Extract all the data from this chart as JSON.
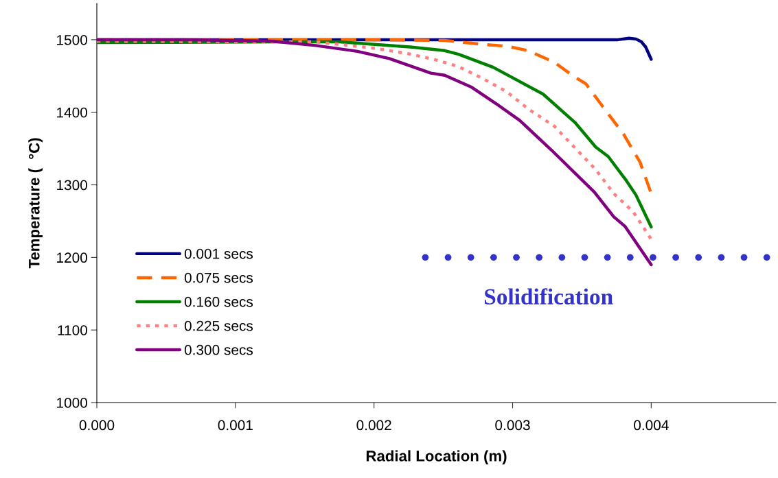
{
  "chart_data": {
    "type": "line",
    "xlabel": "Radial Location (m)",
    "ylabel": "Temperature (  °C)",
    "xlim": [
      0,
      0.0049
    ],
    "xticks": [
      {
        "value": 0,
        "label": "0.000"
      },
      {
        "value": 0.001,
        "label": "0.001"
      },
      {
        "value": 0.002,
        "label": "0.002"
      },
      {
        "value": 0.003,
        "label": "0.003"
      },
      {
        "value": 0.004,
        "label": "0.004"
      }
    ],
    "ylim": [
      1000,
      1550
    ],
    "yticks": [
      1000,
      1100,
      1200,
      1300,
      1400,
      1500
    ],
    "grid": false,
    "legend": "lower left",
    "series": [
      {
        "name": "0.001 secs",
        "color": "#000080",
        "line_style": "solid",
        "x": [
          0,
          0.002,
          0.00376,
          0.00384,
          0.00389,
          0.00393,
          0.00396,
          0.004
        ],
        "values": [
          1500,
          1500,
          1500,
          1502,
          1501,
          1497,
          1490,
          1473
        ]
      },
      {
        "name": "0.075 secs",
        "color": "#ff6600",
        "line_style": "dashed",
        "x": [
          0,
          0.00206,
          0.00251,
          0.00276,
          0.00296,
          0.00311,
          0.0033,
          0.00343,
          0.00353,
          0.00365,
          0.0038,
          0.00392,
          0.004
        ],
        "values": [
          1500,
          1500,
          1499,
          1494,
          1491,
          1485,
          1469,
          1451,
          1439,
          1408,
          1370,
          1331,
          1288
        ]
      },
      {
        "name": "0.160 secs",
        "color": "#008000",
        "line_style": "solid",
        "x": [
          0,
          0.00132,
          0.00175,
          0.00226,
          0.00251,
          0.00261,
          0.00286,
          0.00322,
          0.00345,
          0.0036,
          0.00369,
          0.00382,
          0.00389,
          0.004
        ],
        "values": [
          1496,
          1497,
          1497,
          1490,
          1485,
          1480,
          1462,
          1425,
          1386,
          1352,
          1339,
          1306,
          1286,
          1242
        ]
      },
      {
        "name": "0.225 secs",
        "color": "#ff8080",
        "line_style": "dotted",
        "x": [
          0,
          0.00158,
          0.00178,
          0.00201,
          0.00224,
          0.00243,
          0.00261,
          0.00279,
          0.00296,
          0.00311,
          0.0033,
          0.00343,
          0.0036,
          0.00373,
          0.00387,
          0.00398,
          0.004
        ],
        "values": [
          1498,
          1497,
          1493,
          1488,
          1481,
          1473,
          1463,
          1446,
          1428,
          1405,
          1381,
          1355,
          1321,
          1288,
          1263,
          1231,
          1225
        ]
      },
      {
        "name": "0.300 secs",
        "color": "#800080",
        "line_style": "solid",
        "x": [
          0,
          0.00068,
          0.00126,
          0.00158,
          0.00188,
          0.00211,
          0.00241,
          0.00251,
          0.0027,
          0.00288,
          0.00305,
          0.00328,
          0.00359,
          0.00373,
          0.00381,
          0.004
        ],
        "values": [
          1500,
          1500,
          1498,
          1492,
          1484,
          1474,
          1454,
          1451,
          1435,
          1412,
          1389,
          1348,
          1290,
          1256,
          1243,
          1190
        ]
      },
      {
        "color": "#3333cc",
        "line_style": "dotted",
        "x": [
          0.00237,
          0.00486
        ],
        "values": [
          1200,
          1200
        ]
      }
    ],
    "annotations": [
      "Solidification"
    ]
  }
}
